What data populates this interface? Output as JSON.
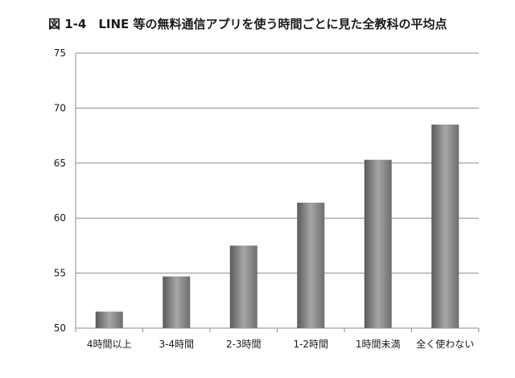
{
  "chart_data": {
    "type": "bar",
    "title": "図 1-4　LINE 等の無料通信アプリを使う時間ごとに見た全教科の平均点",
    "categories": [
      "4時間以上",
      "3-4時間",
      "2-3時間",
      "1-2時間",
      "1時間未満",
      "全く使わない"
    ],
    "values": [
      51.5,
      54.7,
      57.5,
      61.4,
      65.3,
      68.5
    ],
    "xlabel": "",
    "ylabel": "",
    "ylim": [
      50,
      75
    ],
    "yticks": [
      50,
      55,
      60,
      65,
      70,
      75
    ],
    "grid": true,
    "legend": "none",
    "colors": {
      "bar_dark": "#5a5a5a",
      "bar_mid": "#8a8a8a",
      "bar_light": "#a6a6a6",
      "grid": "#8c8c8c",
      "axis": "#8c8c8c"
    }
  }
}
